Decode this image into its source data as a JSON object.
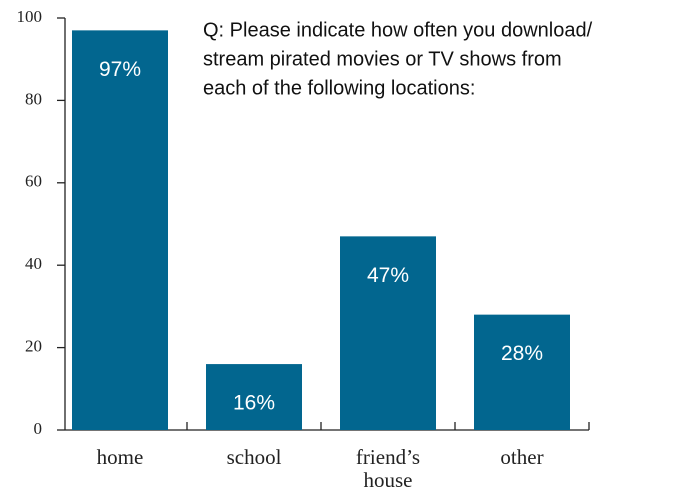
{
  "chart_data": {
    "type": "bar",
    "annotation": [
      "Q: Please indicate how often you download/",
      "stream pirated movies or TV shows from",
      "each of the following locations:"
    ],
    "categories": [
      "home",
      "school",
      "friend’s house",
      "other"
    ],
    "values": [
      97,
      16,
      47,
      28
    ],
    "value_labels": [
      "97%",
      "16%",
      "47%",
      "28%"
    ],
    "color": "#02668f",
    "ylim": [
      0,
      100
    ],
    "yticks": [
      0,
      20,
      40,
      60,
      80,
      100
    ],
    "grid": false
  }
}
